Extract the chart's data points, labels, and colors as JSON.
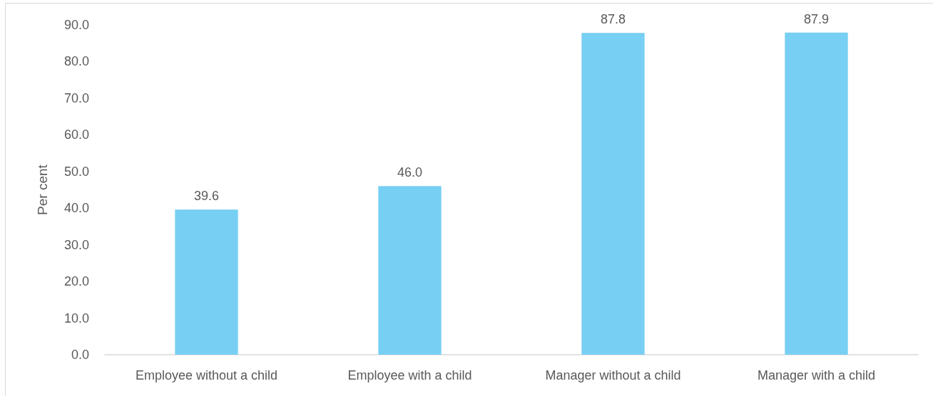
{
  "chart_data": {
    "type": "bar",
    "ylabel": "Per cent",
    "categories": [
      "Employee without a child",
      "Employee with a child",
      "Manager without a child",
      "Manager with a child"
    ],
    "values": [
      39.6,
      46.0,
      87.8,
      87.9
    ],
    "value_labels": [
      "39.6",
      "46.0",
      "87.8",
      "87.9"
    ],
    "color": "#77cff3",
    "ylim": [
      0,
      90
    ],
    "yticks": [
      {
        "value": 0,
        "label": "0.0"
      },
      {
        "value": 10,
        "label": "10.0"
      },
      {
        "value": 20,
        "label": "20.0"
      },
      {
        "value": 30,
        "label": "30.0"
      },
      {
        "value": 40,
        "label": "40.0"
      },
      {
        "value": 50,
        "label": "50.0"
      },
      {
        "value": 60,
        "label": "60.0"
      },
      {
        "value": 70,
        "label": "70.0"
      },
      {
        "value": 80,
        "label": "80.0"
      },
      {
        "value": 90,
        "label": "90.0"
      }
    ],
    "grid": false
  }
}
